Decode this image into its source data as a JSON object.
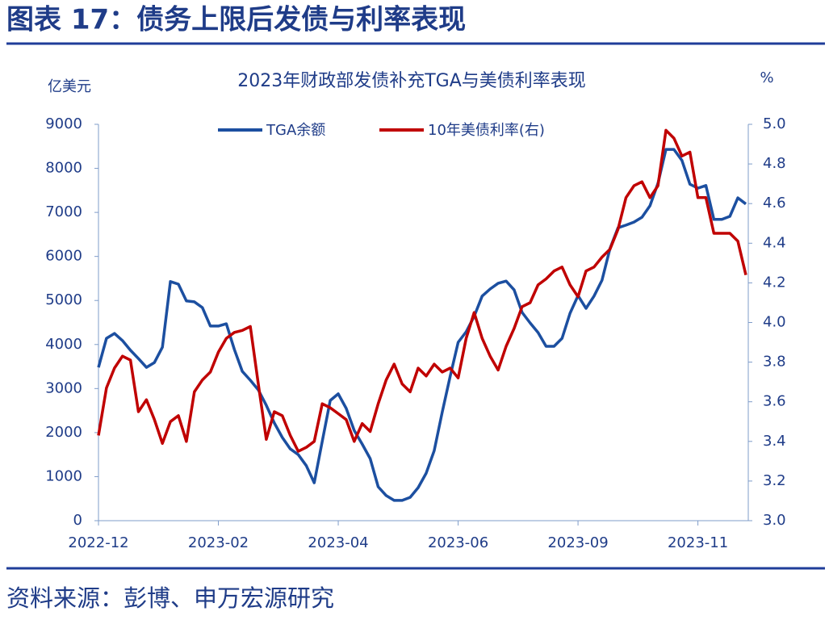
{
  "header": {
    "title": "图表 17：债务上限后发债与利率表现"
  },
  "chart_data": {
    "type": "line",
    "title": "2023年财政部发债补充TGA与美债利率表现",
    "y_label": "亿美元",
    "y2_label": "%",
    "legend": "top",
    "categories": [
      "2022-12",
      null,
      null,
      null,
      null,
      null,
      null,
      null,
      null,
      null,
      null,
      null,
      null,
      null,
      null,
      "2023-02",
      null,
      null,
      null,
      null,
      null,
      null,
      null,
      null,
      null,
      null,
      null,
      null,
      null,
      null,
      "2023-04",
      null,
      null,
      null,
      null,
      null,
      null,
      null,
      null,
      null,
      null,
      null,
      null,
      null,
      null,
      "2023-06",
      null,
      null,
      null,
      null,
      null,
      null,
      null,
      null,
      null,
      null,
      null,
      null,
      null,
      null,
      "2023-09",
      null,
      null,
      null,
      null,
      null,
      null,
      null,
      null,
      null,
      null,
      null,
      null,
      null,
      null,
      "2023-11",
      null,
      null,
      null,
      null,
      null,
      null
    ],
    "series": [
      {
        "name": "TGA余额",
        "color": "#1c4fa0",
        "values": [
          3480,
          4140,
          4250,
          4090,
          3870,
          3680,
          3480,
          3590,
          3940,
          5430,
          5370,
          4990,
          4970,
          4840,
          4420,
          4420,
          4470,
          3890,
          3390,
          3190,
          2970,
          2620,
          2220,
          1890,
          1630,
          1500,
          1250,
          860,
          1800,
          2730,
          2880,
          2550,
          2050,
          1740,
          1410,
          770,
          570,
          460,
          460,
          530,
          750,
          1080,
          1590,
          2460,
          3280,
          4050,
          4290,
          4640,
          5100,
          5260,
          5390,
          5440,
          5240,
          4730,
          4490,
          4270,
          3960,
          3960,
          4140,
          4710,
          5110,
          4820,
          5100,
          5460,
          6180,
          6650,
          6710,
          6780,
          6890,
          7150,
          7660,
          8430,
          8430,
          8180,
          7640,
          7550,
          7610,
          6840,
          6840,
          6910,
          7330,
          7190
        ]
      },
      {
        "name": "10年美债利率(右)",
        "color": "#c00000",
        "axis": "y2",
        "values": [
          3.43,
          3.67,
          3.77,
          3.83,
          3.81,
          3.55,
          3.61,
          3.51,
          3.39,
          3.5,
          3.53,
          3.4,
          3.65,
          3.71,
          3.75,
          3.85,
          3.92,
          3.95,
          3.96,
          3.98,
          3.69,
          3.41,
          3.55,
          3.53,
          3.43,
          3.35,
          3.37,
          3.4,
          3.59,
          3.57,
          3.54,
          3.51,
          3.4,
          3.49,
          3.45,
          3.59,
          3.71,
          3.79,
          3.69,
          3.65,
          3.77,
          3.73,
          3.79,
          3.75,
          3.77,
          3.72,
          3.92,
          4.05,
          3.92,
          3.83,
          3.76,
          3.88,
          3.97,
          4.08,
          4.1,
          4.19,
          4.22,
          4.26,
          4.28,
          4.19,
          4.13,
          4.26,
          4.28,
          4.33,
          4.37,
          4.47,
          4.63,
          4.69,
          4.71,
          4.63,
          4.69,
          4.97,
          4.93,
          4.84,
          4.86,
          4.63,
          4.63,
          4.45,
          4.45,
          4.45,
          4.41,
          4.24
        ]
      }
    ],
    "ylim": [
      0,
      9000
    ],
    "yticks": [
      0,
      1000,
      2000,
      3000,
      4000,
      5000,
      6000,
      7000,
      8000,
      9000
    ],
    "y2lim": [
      3,
      5
    ],
    "y2ticks": [
      {
        "value": 3,
        "label": "3.0"
      },
      3.2,
      3.4,
      3.6,
      3.8,
      {
        "value": 4,
        "label": "4.0"
      },
      4.2,
      4.4,
      4.6,
      4.8,
      {
        "value": 5,
        "label": "5.0"
      }
    ]
  },
  "source": "资料来源：彭博、申万宏源研究"
}
